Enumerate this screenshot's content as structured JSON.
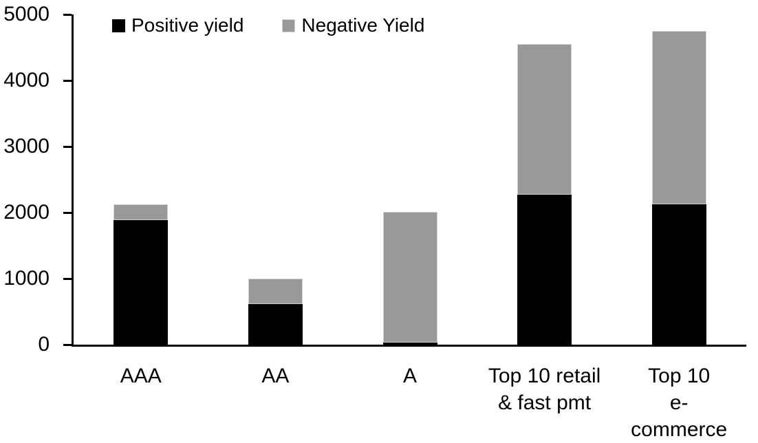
{
  "chart_data": {
    "type": "bar",
    "stacked": true,
    "title": "",
    "xlabel": "",
    "ylabel": "",
    "categories": [
      "AAA",
      "AA",
      "A",
      "Top 10 retail & fast pmt",
      "Top 10 e-commerce"
    ],
    "category_label_lines": [
      [
        "AAA"
      ],
      [
        "AA"
      ],
      [
        "A"
      ],
      [
        "Top 10 retail",
        "& fast pmt"
      ],
      [
        "Top 10",
        "e-commerce"
      ]
    ],
    "series": [
      {
        "name": "Positive yield",
        "color": "#000000",
        "values": [
          1890,
          610,
          30,
          2270,
          2130
        ]
      },
      {
        "name": "Negative Yield",
        "color": "#999999",
        "values": [
          230,
          390,
          1980,
          2280,
          2620
        ]
      }
    ],
    "totals": [
      2120,
      1000,
      2010,
      4550,
      4750
    ],
    "ylim": [
      0,
      5000
    ],
    "yticks": [
      0,
      1000,
      2000,
      3000,
      4000,
      5000
    ],
    "grid": false,
    "legend_position": "top",
    "background_color": "#ffffff"
  }
}
